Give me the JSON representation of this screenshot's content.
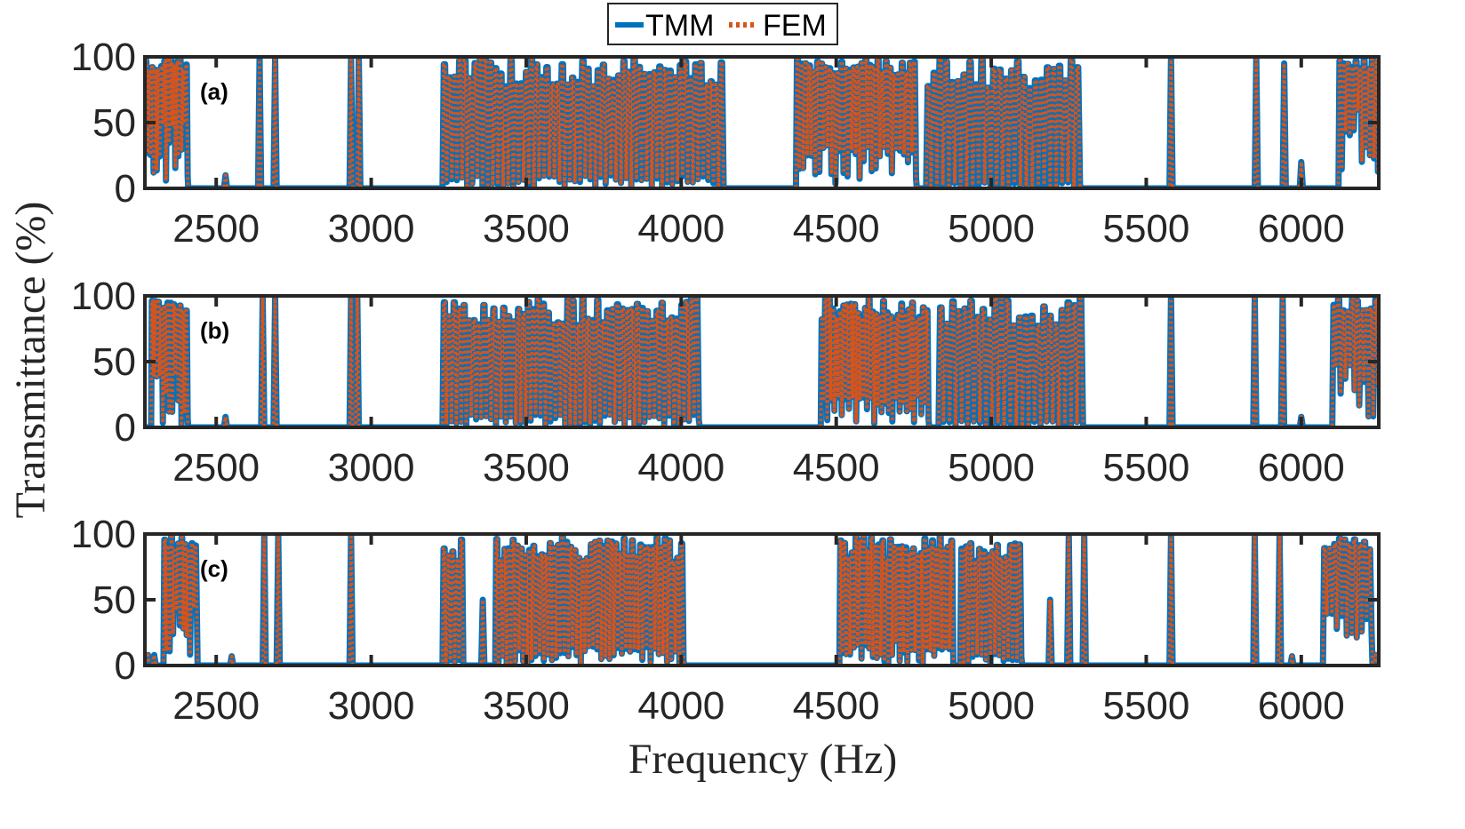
{
  "legend": {
    "items": [
      {
        "label": "TMM",
        "color": "#0072BD",
        "style": "solid"
      },
      {
        "label": "FEM",
        "color": "#D95319",
        "style": "dotted"
      }
    ],
    "placement": "top-center"
  },
  "axes": {
    "xlabel": "Frequency (Hz)",
    "ylabel": "Transmittance (%)"
  },
  "chart_data": [
    {
      "type": "line",
      "panel_label": "(a)",
      "xlim": [
        2270,
        6250
      ],
      "ylim": [
        0,
        100
      ],
      "x_ticks": [
        2500,
        3000,
        3500,
        4000,
        4500,
        5000,
        5500,
        6000
      ],
      "y_ticks": [
        0,
        50,
        100
      ],
      "x_tick_labels": [
        "2500",
        "3000",
        "3500",
        "4000",
        "4500",
        "5000",
        "5500",
        "6000"
      ],
      "y_tick_labels": [
        "0",
        "50",
        "100"
      ],
      "series": [
        {
          "name": "TMM",
          "color": "#0072BD"
        },
        {
          "name": "FEM",
          "color": "#D95319"
        }
      ],
      "passbands": [
        {
          "x": [
            2270,
            2410
          ],
          "ymin": 55,
          "ymax": 100,
          "n": 14,
          "base": 5
        },
        {
          "x": [
            3230,
            4140
          ],
          "ymin": 10,
          "ymax": 100,
          "n": 55,
          "base": 0
        },
        {
          "x": [
            4370,
            4760
          ],
          "ymin": 35,
          "ymax": 100,
          "n": 30,
          "base": 0
        },
        {
          "x": [
            4790,
            5290
          ],
          "ymin": 5,
          "ymax": 100,
          "n": 26,
          "base": 0
        },
        {
          "x": [
            6120,
            6250
          ],
          "ymin": 60,
          "ymax": 100,
          "n": 10,
          "base": 10
        }
      ],
      "peaks": [
        {
          "x": 2530,
          "y": 10
        },
        {
          "x": 2640,
          "y": 100
        },
        {
          "x": 2690,
          "y": 100
        },
        {
          "x": 2935,
          "y": 100
        },
        {
          "x": 2960,
          "y": 100
        },
        {
          "x": 5580,
          "y": 100
        },
        {
          "x": 5855,
          "y": 100
        },
        {
          "x": 5945,
          "y": 95
        },
        {
          "x": 6000,
          "y": 20
        }
      ]
    },
    {
      "type": "line",
      "panel_label": "(b)",
      "xlim": [
        2270,
        6250
      ],
      "ylim": [
        0,
        100
      ],
      "x_ticks": [
        2500,
        3000,
        3500,
        4000,
        4500,
        5000,
        5500,
        6000
      ],
      "y_ticks": [
        0,
        50,
        100
      ],
      "x_tick_labels": [
        "2500",
        "3000",
        "3500",
        "4000",
        "4500",
        "5000",
        "5500",
        "6000"
      ],
      "y_tick_labels": [
        "0",
        "50",
        "100"
      ],
      "series": [
        {
          "name": "TMM",
          "color": "#0072BD"
        },
        {
          "name": "FEM",
          "color": "#D95319"
        }
      ],
      "passbands": [
        {
          "x": [
            2290,
            2410
          ],
          "ymin": 50,
          "ymax": 100,
          "n": 12,
          "base": 0
        },
        {
          "x": [
            3230,
            4060
          ],
          "ymin": 10,
          "ymax": 100,
          "n": 52,
          "base": 0
        },
        {
          "x": [
            4450,
            4800
          ],
          "ymin": 25,
          "ymax": 100,
          "n": 30,
          "base": 0
        },
        {
          "x": [
            4830,
            5300
          ],
          "ymin": 5,
          "ymax": 100,
          "n": 24,
          "base": 0
        },
        {
          "x": [
            6100,
            6250
          ],
          "ymin": 50,
          "ymax": 100,
          "n": 10,
          "base": 5
        }
      ],
      "peaks": [
        {
          "x": 2530,
          "y": 8
        },
        {
          "x": 2650,
          "y": 100
        },
        {
          "x": 2690,
          "y": 100
        },
        {
          "x": 2935,
          "y": 100
        },
        {
          "x": 2955,
          "y": 100
        },
        {
          "x": 5580,
          "y": 100
        },
        {
          "x": 5850,
          "y": 100
        },
        {
          "x": 5940,
          "y": 100
        },
        {
          "x": 6000,
          "y": 8
        }
      ]
    },
    {
      "type": "line",
      "panel_label": "(c)",
      "xlim": [
        2270,
        6250
      ],
      "ylim": [
        0,
        100
      ],
      "x_ticks": [
        2500,
        3000,
        3500,
        4000,
        4500,
        5000,
        5500,
        6000
      ],
      "y_ticks": [
        0,
        50,
        100
      ],
      "x_tick_labels": [
        "2500",
        "3000",
        "3500",
        "4000",
        "4500",
        "5000",
        "5500",
        "6000"
      ],
      "y_tick_labels": [
        "0",
        "50",
        "100"
      ],
      "series": [
        {
          "name": "TMM",
          "color": "#0072BD"
        },
        {
          "name": "FEM",
          "color": "#D95319"
        }
      ],
      "passbands": [
        {
          "x": [
            2330,
            2440
          ],
          "ymin": 45,
          "ymax": 100,
          "n": 10,
          "base": 5
        },
        {
          "x": [
            3230,
            3300
          ],
          "ymin": 5,
          "ymax": 100,
          "n": 5,
          "base": 0
        },
        {
          "x": [
            3400,
            4010
          ],
          "ymin": 15,
          "ymax": 100,
          "n": 46,
          "base": 0
        },
        {
          "x": [
            4510,
            4880
          ],
          "ymin": 20,
          "ymax": 100,
          "n": 30,
          "base": 0
        },
        {
          "x": [
            4900,
            5100
          ],
          "ymin": 10,
          "ymax": 100,
          "n": 14,
          "base": 0
        },
        {
          "x": [
            6070,
            6230
          ],
          "ymin": 40,
          "ymax": 100,
          "n": 10,
          "base": 5
        }
      ],
      "peaks": [
        {
          "x": 2280,
          "y": 8
        },
        {
          "x": 2300,
          "y": 8
        },
        {
          "x": 2550,
          "y": 7
        },
        {
          "x": 2655,
          "y": 100
        },
        {
          "x": 2700,
          "y": 100
        },
        {
          "x": 2935,
          "y": 100
        },
        {
          "x": 3360,
          "y": 50
        },
        {
          "x": 5190,
          "y": 50
        },
        {
          "x": 5250,
          "y": 100
        },
        {
          "x": 5300,
          "y": 100
        },
        {
          "x": 5580,
          "y": 100
        },
        {
          "x": 5850,
          "y": 100
        },
        {
          "x": 5930,
          "y": 100
        },
        {
          "x": 5970,
          "y": 7
        },
        {
          "x": 6240,
          "y": 8
        }
      ]
    }
  ]
}
